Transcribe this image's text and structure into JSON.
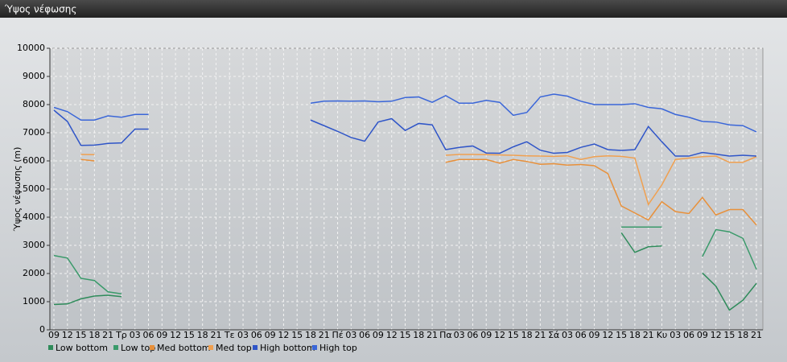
{
  "window_title": "Ύψος νέφωσης",
  "chart_data": {
    "type": "line",
    "y_label": "Ύψος νέφωσης (m)",
    "categories": [
      "09",
      "12",
      "15",
      "18",
      "21",
      "Τρ",
      "03",
      "06",
      "09",
      "12",
      "15",
      "18",
      "21",
      "Τε",
      "03",
      "06",
      "09",
      "12",
      "15",
      "18",
      "21",
      "Πέ",
      "03",
      "06",
      "09",
      "12",
      "15",
      "18",
      "21",
      "Πα",
      "03",
      "06",
      "09",
      "12",
      "15",
      "18",
      "21",
      "Σά",
      "03",
      "06",
      "09",
      "12",
      "15",
      "18",
      "21",
      "Κυ",
      "03",
      "06",
      "09",
      "12",
      "15",
      "18",
      "21"
    ],
    "ylim": [
      0,
      10000
    ],
    "yticks": [
      0,
      1000,
      2000,
      3000,
      4000,
      5000,
      6000,
      7000,
      8000,
      9000,
      10000
    ],
    "grid": true,
    "series": [
      {
        "name": "Low bottom",
        "color": "#2e8b5a",
        "values": [
          900,
          920,
          1100,
          1200,
          1230,
          1180,
          null,
          null,
          null,
          null,
          null,
          null,
          null,
          null,
          null,
          null,
          null,
          null,
          null,
          null,
          null,
          null,
          null,
          null,
          null,
          null,
          null,
          null,
          null,
          null,
          null,
          null,
          null,
          null,
          null,
          null,
          null,
          null,
          null,
          null,
          null,
          null,
          3450,
          2750,
          2950,
          2980,
          null,
          null,
          2020,
          1550,
          700,
          1050,
          1650
        ]
      },
      {
        "name": "Low top",
        "color": "#3a9a6a",
        "values": [
          2640,
          2550,
          1830,
          1750,
          1350,
          1280,
          null,
          null,
          null,
          null,
          null,
          null,
          null,
          null,
          null,
          null,
          null,
          null,
          null,
          null,
          null,
          null,
          null,
          null,
          null,
          null,
          null,
          null,
          null,
          null,
          null,
          null,
          null,
          null,
          null,
          null,
          null,
          null,
          null,
          null,
          null,
          null,
          3650,
          3650,
          3650,
          3650,
          null,
          null,
          2600,
          3560,
          3480,
          3250,
          2150
        ]
      },
      {
        "name": "Med bottom",
        "color": "#e8903a",
        "values": [
          null,
          null,
          6050,
          6000,
          null,
          null,
          null,
          null,
          null,
          null,
          null,
          null,
          null,
          null,
          null,
          null,
          null,
          null,
          null,
          null,
          null,
          null,
          null,
          null,
          null,
          null,
          null,
          null,
          null,
          5950,
          6050,
          6050,
          6050,
          5920,
          6050,
          5980,
          5880,
          5900,
          5850,
          5870,
          5830,
          5550,
          4400,
          4150,
          3900,
          4550,
          4200,
          4130,
          4700,
          4080,
          4270,
          4270,
          3720
        ]
      },
      {
        "name": "Med top",
        "color": "#f0a050",
        "values": [
          null,
          null,
          6230,
          6220,
          null,
          null,
          null,
          null,
          null,
          null,
          null,
          null,
          null,
          null,
          null,
          null,
          null,
          null,
          null,
          null,
          null,
          null,
          null,
          null,
          null,
          null,
          null,
          null,
          null,
          6200,
          6230,
          6230,
          6220,
          6210,
          6200,
          6180,
          6170,
          6160,
          6180,
          6050,
          6150,
          6180,
          6160,
          6100,
          4450,
          5150,
          6050,
          6100,
          6150,
          6170,
          5950,
          5950,
          6150
        ]
      },
      {
        "name": "High bottom",
        "color": "#2f55c8",
        "values": [
          7800,
          7400,
          6550,
          6560,
          6620,
          6640,
          7130,
          7130,
          null,
          null,
          null,
          null,
          null,
          null,
          null,
          null,
          null,
          null,
          null,
          7450,
          7250,
          7050,
          6830,
          6700,
          7380,
          7500,
          7080,
          7330,
          7280,
          6400,
          6480,
          6530,
          6280,
          6270,
          6500,
          6680,
          6380,
          6270,
          6300,
          6480,
          6600,
          6400,
          6370,
          6400,
          7220,
          6680,
          6170,
          6170,
          6300,
          6240,
          6170,
          6200,
          6170
        ]
      },
      {
        "name": "High top",
        "color": "#3a66d8",
        "values": [
          7900,
          7750,
          7450,
          7450,
          7600,
          7550,
          7650,
          7650,
          null,
          null,
          null,
          null,
          null,
          null,
          null,
          null,
          null,
          null,
          null,
          8050,
          8120,
          8130,
          8120,
          8130,
          8100,
          8120,
          8250,
          8270,
          8080,
          8320,
          8050,
          8050,
          8150,
          8080,
          7620,
          7720,
          8270,
          8370,
          8300,
          8120,
          8000,
          8000,
          8000,
          8030,
          7900,
          7850,
          7650,
          7550,
          7400,
          7380,
          7280,
          7250,
          7030
        ]
      }
    ]
  }
}
